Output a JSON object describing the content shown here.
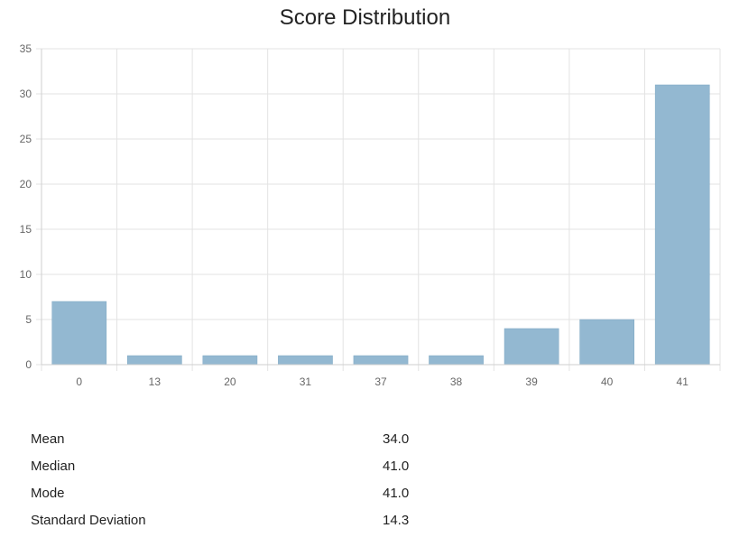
{
  "chart_data": {
    "type": "bar",
    "title": "Score Distribution",
    "categories": [
      "0",
      "13",
      "20",
      "31",
      "37",
      "38",
      "39",
      "40",
      "41"
    ],
    "values": [
      7,
      1,
      1,
      1,
      1,
      1,
      4,
      5,
      31
    ],
    "ylim": [
      0,
      35
    ],
    "yticks": [
      0,
      5,
      10,
      15,
      20,
      25,
      30,
      35
    ],
    "grid": true,
    "bar_color": "#93b8d1",
    "bar_border_color": "#7fa8c4"
  },
  "stats": [
    {
      "label": "Mean",
      "value": "34.0"
    },
    {
      "label": "Median",
      "value": "41.0"
    },
    {
      "label": "Mode",
      "value": "41.0"
    },
    {
      "label": "Standard Deviation",
      "value": "14.3"
    }
  ]
}
